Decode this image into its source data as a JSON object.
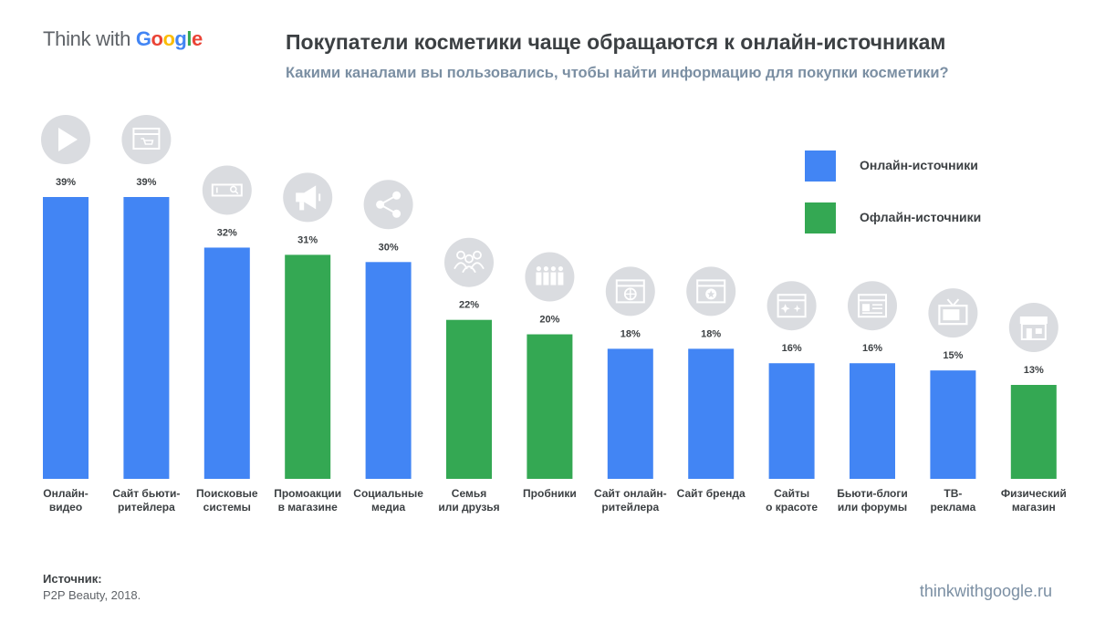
{
  "brand": {
    "prefix": "Think with ",
    "google": [
      "G",
      "o",
      "o",
      "g",
      "l",
      "e"
    ],
    "google_colors": [
      "#4285f4",
      "#ea4335",
      "#fbbc05",
      "#4285f4",
      "#34a853",
      "#ea4335"
    ]
  },
  "header": {
    "title": "Покупатели косметики чаще обращаются к онлайн-источникам",
    "subtitle": "Какими каналами вы пользовались, чтобы найти информацию для покупки косметики?"
  },
  "legend": [
    {
      "label": "Онлайн-источники",
      "color": "#4285f4"
    },
    {
      "label": "Офлайн-источники",
      "color": "#34a853"
    }
  ],
  "colors": {
    "online": "#4285f4",
    "offline": "#34a853",
    "icon_bg": "#dadce0",
    "text": "#3c4043"
  },
  "chart_data": {
    "type": "bar",
    "ylim": [
      0,
      39
    ],
    "categories": [
      [
        "Онлайн-",
        "видео"
      ],
      [
        "Сайт бьюти-",
        "ритейлера"
      ],
      [
        "Поисковые",
        "системы"
      ],
      [
        "Промоакции",
        "в магазине"
      ],
      [
        "Социальные",
        "медиа"
      ],
      [
        "Семья",
        "или друзья"
      ],
      [
        "Пробники"
      ],
      [
        "Сайт онлайн-",
        "ритейлера"
      ],
      [
        "Сайт бренда"
      ],
      [
        "Сайты",
        "о красоте"
      ],
      [
        "Бьюти-блоги",
        "или форумы"
      ],
      [
        "ТВ-",
        "реклама"
      ],
      [
        "Физический",
        "магазин"
      ]
    ],
    "values": [
      39,
      39,
      32,
      31,
      30,
      22,
      20,
      18,
      18,
      16,
      16,
      15,
      13
    ],
    "value_labels": [
      "39%",
      "39%",
      "32%",
      "31%",
      "30%",
      "22%",
      "20%",
      "18%",
      "18%",
      "16%",
      "16%",
      "15%",
      "13%"
    ],
    "source_type": [
      "online",
      "online",
      "online",
      "offline",
      "online",
      "offline",
      "offline",
      "online",
      "online",
      "online",
      "online",
      "online",
      "offline"
    ],
    "icons": [
      "play-icon",
      "shop-window-icon",
      "search-bar-icon",
      "megaphone-icon",
      "share-icon",
      "people-icon",
      "samples-icon",
      "online-store-icon",
      "brand-site-icon",
      "beauty-site-icon",
      "blog-icon",
      "tv-icon",
      "store-icon"
    ]
  },
  "footer": {
    "source_label": "Источник:",
    "source_text": "P2P Beauty, 2018.",
    "site": "thinkwithgoogle.ru"
  }
}
